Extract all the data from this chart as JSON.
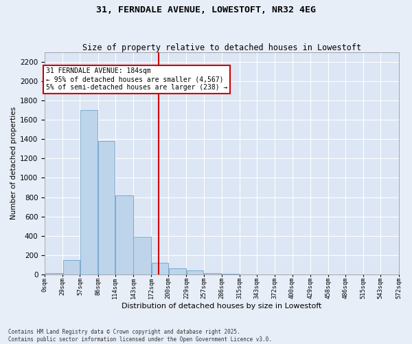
{
  "title": "31, FERNDALE AVENUE, LOWESTOFT, NR32 4EG",
  "subtitle": "Size of property relative to detached houses in Lowestoft",
  "xlabel": "Distribution of detached houses by size in Lowestoft",
  "ylabel": "Number of detached properties",
  "bar_color": "#bdd4eb",
  "bar_edge_color": "#7aaad0",
  "background_color": "#dce6f4",
  "grid_color": "#ffffff",
  "vline_value": 184,
  "vline_color": "#cc0000",
  "annotation_text": "31 FERNDALE AVENUE: 184sqm\n← 95% of detached houses are smaller (4,567)\n5% of semi-detached houses are larger (238) →",
  "annotation_box_color": "#cc0000",
  "bin_edges": [
    0,
    29,
    57,
    86,
    114,
    143,
    172,
    200,
    229,
    257,
    286,
    315,
    343,
    372,
    400,
    429,
    458,
    486,
    515,
    543,
    572
  ],
  "bar_heights": [
    10,
    150,
    1700,
    1380,
    820,
    390,
    120,
    60,
    40,
    15,
    3,
    0,
    0,
    0,
    0,
    0,
    0,
    0,
    0,
    0
  ],
  "xtick_labels": [
    "0sqm",
    "29sqm",
    "57sqm",
    "86sqm",
    "114sqm",
    "143sqm",
    "172sqm",
    "200sqm",
    "229sqm",
    "257sqm",
    "286sqm",
    "315sqm",
    "343sqm",
    "372sqm",
    "400sqm",
    "429sqm",
    "458sqm",
    "486sqm",
    "515sqm",
    "543sqm",
    "572sqm"
  ],
  "ylim": [
    0,
    2300
  ],
  "yticks": [
    0,
    200,
    400,
    600,
    800,
    1000,
    1200,
    1400,
    1600,
    1800,
    2000,
    2200
  ],
  "footer_text": "Contains HM Land Registry data © Crown copyright and database right 2025.\nContains public sector information licensed under the Open Government Licence v3.0.",
  "fig_bg_color": "#e8eef8",
  "title_fontsize": 9.5,
  "subtitle_fontsize": 8.5
}
